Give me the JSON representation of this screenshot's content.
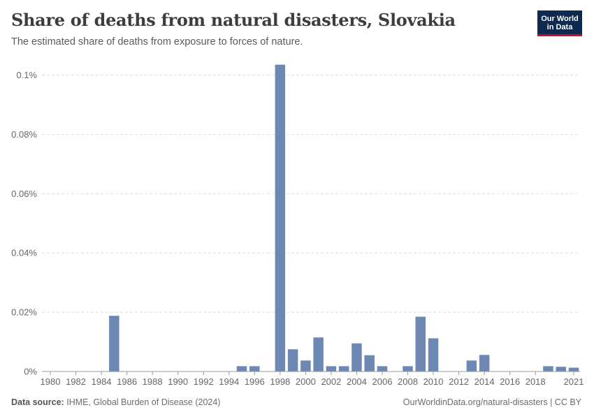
{
  "header": {
    "title": "Share of deaths from natural disasters, Slovakia",
    "subtitle": "The estimated share of deaths from exposure to forces of nature."
  },
  "logo": {
    "line1": "Our World",
    "line2": "in Data"
  },
  "footer": {
    "source_label": "Data source:",
    "source_text": "IHME, Global Burden of Disease (2024)",
    "right_text": "OurWorldinData.org/natural-disasters | CC BY"
  },
  "colors": {
    "bar": "#6d89b3",
    "grid": "#dddddd",
    "axis": "#999999",
    "text": "#666666"
  },
  "chart_data": {
    "type": "bar",
    "title": "Share of deaths from natural disasters, Slovakia",
    "subtitle": "The estimated share of deaths from exposure to forces of nature.",
    "xlabel": "",
    "ylabel": "",
    "x_range": [
      1980,
      2021
    ],
    "ylim": [
      0,
      0.1
    ],
    "y_ticks": [
      0,
      0.02,
      0.04,
      0.06,
      0.08,
      0.1
    ],
    "y_tick_labels": [
      "0%",
      "0.02%",
      "0.04%",
      "0.06%",
      "0.08%",
      "0.1%"
    ],
    "x_ticks": [
      1980,
      1982,
      1984,
      1986,
      1988,
      1990,
      1992,
      1994,
      1996,
      1998,
      2000,
      2002,
      2004,
      2006,
      2008,
      2010,
      2012,
      2014,
      2016,
      2018,
      2021
    ],
    "grid": true,
    "unit": "%",
    "points": [
      {
        "year": 1985,
        "value": 0.0188
      },
      {
        "year": 1995,
        "value": 0.0018
      },
      {
        "year": 1996,
        "value": 0.0018
      },
      {
        "year": 1998,
        "value": 0.1035
      },
      {
        "year": 1999,
        "value": 0.0075
      },
      {
        "year": 2000,
        "value": 0.0037
      },
      {
        "year": 2001,
        "value": 0.0115
      },
      {
        "year": 2002,
        "value": 0.0018
      },
      {
        "year": 2003,
        "value": 0.0018
      },
      {
        "year": 2004,
        "value": 0.0095
      },
      {
        "year": 2005,
        "value": 0.0055
      },
      {
        "year": 2006,
        "value": 0.0018
      },
      {
        "year": 2008,
        "value": 0.0018
      },
      {
        "year": 2009,
        "value": 0.0185
      },
      {
        "year": 2010,
        "value": 0.0112
      },
      {
        "year": 2013,
        "value": 0.0037
      },
      {
        "year": 2014,
        "value": 0.0056
      },
      {
        "year": 2019,
        "value": 0.0018
      },
      {
        "year": 2020,
        "value": 0.0016
      },
      {
        "year": 2021,
        "value": 0.0013
      }
    ]
  }
}
